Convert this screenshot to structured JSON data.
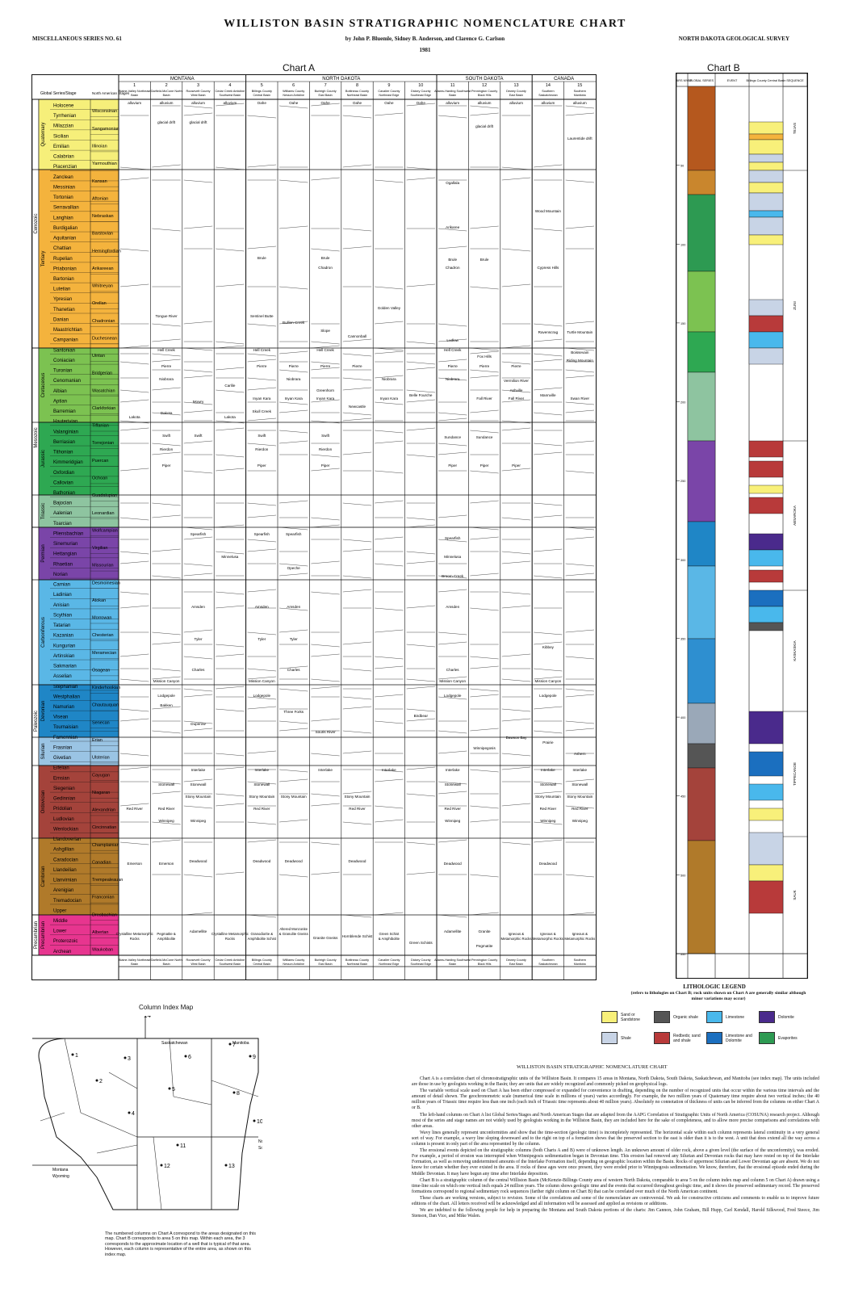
{
  "header": {
    "title": "WILLISTON BASIN STRATIGRAPHIC NOMENCLATURE CHART",
    "series": "MISCELLANEOUS SERIES NO. 61",
    "authors": "by John P. Bluemle, Sidney B. Anderson, and Clarence G. Carlson",
    "survey": "NORTH DAKOTA GEOLOGICAL SURVEY",
    "year": "1981"
  },
  "chartA": {
    "title": "Chart A",
    "col_header_series": "Global Series/Stage",
    "col_header_na": "North American Stages",
    "regions": [
      {
        "name": "MONTANA",
        "cols": [
          "1",
          "2",
          "3",
          "4"
        ]
      },
      {
        "name": "NORTH DAKOTA",
        "cols": [
          "5",
          "6",
          "7",
          "8",
          "9",
          "10"
        ]
      },
      {
        "name": "SOUTH DAKOTA",
        "cols": [
          "11",
          "12",
          "13"
        ]
      },
      {
        "name": "CANADA",
        "cols": [
          "14",
          "15"
        ]
      }
    ],
    "areas": [
      "Blaine-Valley Northeast Basin",
      "Garfield-McCone North Basin",
      "Roosevelt County West Basin",
      "Cedar Creek Anticline Southwest Basin",
      "Billings County Central Basin",
      "Williams County Nesson Anticline",
      "Burleigh County East Basin",
      "Bottineau County Northeast Basin",
      "Cavalier County Northeast Edge",
      "Dickey County Southeast Edge",
      "Adams-Harding Southwest Basin",
      "Pennington County Black Hills",
      "Dewey County East Basin",
      "Southern Saskatchewan",
      "Southern Manitoba"
    ],
    "eras": [
      "Cenozoic",
      "Mesozoic",
      "Paleozoic",
      "Precambrian"
    ],
    "systems": [
      {
        "name": "Quaternary",
        "color": "#f6ef7a"
      },
      {
        "name": "Tertiary",
        "color": "#f4b33d"
      },
      {
        "name": "Cretaceous",
        "color": "#7cc251"
      },
      {
        "name": "Jurassic",
        "color": "#2ea852"
      },
      {
        "name": "Triassic",
        "color": "#8ec4a0"
      },
      {
        "name": "Permian",
        "color": "#7a45a8"
      },
      {
        "name": "Carboniferous",
        "color": "#5ab7e6"
      },
      {
        "name": "Devonian",
        "color": "#1f86c6"
      },
      {
        "name": "Silurian",
        "color": "#9ac4e4"
      },
      {
        "name": "Ordovician",
        "color": "#a4433b"
      },
      {
        "name": "Cambrian",
        "color": "#b07a2a"
      },
      {
        "name": "Precambrian",
        "color": "#e7358f"
      }
    ],
    "stages": [
      "Holocene",
      "Tyrrhenian",
      "Milazzian",
      "Sicilian",
      "Emilian",
      "Calabrian",
      "Piacenzian",
      "Zanclean",
      "Messinian",
      "Tortonian",
      "Serravallian",
      "Langhian",
      "Burdigalian",
      "Aquitanian",
      "Chattian",
      "Rupelian",
      "Priabonian",
      "Bartonian",
      "Lutetian",
      "Ypresian",
      "Thanetian",
      "Danian",
      "Maastrichtian",
      "Campanian",
      "Santonian",
      "Coniacian",
      "Turonian",
      "Cenomanian",
      "Albian",
      "Aptian",
      "Barremian",
      "Hauterivian",
      "Valanginian",
      "Berriasian",
      "Tithonian",
      "Kimmeridgian",
      "Oxfordian",
      "Callovian",
      "Bathonian",
      "Bajocian",
      "Aalenian",
      "Toarcian",
      "Pliensbachian",
      "Sinemurian",
      "Hettangian",
      "Rhaetian",
      "Norian",
      "Carnian",
      "Ladinian",
      "Anisian",
      "Scythian",
      "Tatarian",
      "Kazanian",
      "Kungurian",
      "Artinskian",
      "Sakmarian",
      "Asselian",
      "Stephanian",
      "Westphalian",
      "Namurian",
      "Visean",
      "Tournaisian",
      "Famennian",
      "Frasnian",
      "Givetian",
      "Eifelian",
      "Emsian",
      "Siegenian",
      "Gedinnian",
      "Pridolian",
      "Ludlovian",
      "Wenlockian",
      "Llandoverian",
      "Ashgillian",
      "Caradocian",
      "Llandeilian",
      "Llanvirnian",
      "Arenigian",
      "Tremadocian",
      "Upper",
      "Middle",
      "Lower",
      "Proterozoic",
      "Archean"
    ],
    "na_stages": [
      "Wisconsinan",
      "Sangamonian",
      "Illinoian",
      "Yarmouthian",
      "Kansan",
      "Aftonian",
      "Nebraskan",
      "Barstovian",
      "Hemingfordian",
      "Arikareean",
      "Whitneyan",
      "Orellan",
      "Chadronian",
      "Duchesnean",
      "Uintan",
      "Bridgerian",
      "Wasatchian",
      "Clarkforkian",
      "Tiffanian",
      "Torrejonian",
      "Puercan",
      "Ochoan",
      "Guadalupian",
      "Leonardian",
      "Wolfcampian",
      "Virgilian",
      "Missourian",
      "Desmoinesian",
      "Atokan",
      "Morrowan",
      "Chesterian",
      "Meramecian",
      "Osagean",
      "Kinderhookian",
      "Chautauquan",
      "Senecan",
      "Erian",
      "Ulsterian",
      "Cayugan",
      "Niagaran",
      "Alexandrian",
      "Cincinnatian",
      "Champlainian",
      "Canadian",
      "Trempealeauan",
      "Franconian",
      "Dresbachian",
      "Albertan",
      "Waukoban"
    ],
    "formations": [
      "alluvium",
      "Oahe",
      "glacial drift",
      "Laurentide drift",
      "Hell Creek",
      "Fox Hills",
      "Pierre",
      "Niobrara",
      "Carlile",
      "Greenhorn",
      "Belle Fourche",
      "Mowry",
      "Newcastle",
      "Skull Creek",
      "Inyan Kara",
      "Fall River",
      "Lakota",
      "Dakota",
      "Swift",
      "Rierdon",
      "Piper",
      "Sundance",
      "Spearfish",
      "Minnelusa",
      "Opeche",
      "Broom Creek",
      "Amsden",
      "Tyler",
      "Kibbey",
      "Charles",
      "Mission Canyon",
      "Lodgepole",
      "Bakken",
      "Three Forks",
      "Birdbear",
      "Duperow",
      "Souris River",
      "Dawson Bay",
      "Prairie",
      "Winnipegosis",
      "Ashern",
      "Interlake",
      "Stonewall",
      "Stony Mountain",
      "Red River",
      "Winnipeg",
      "Deadwood",
      "Emerson",
      "Tongue River",
      "Sentinel Butte",
      "Ludlow",
      "Cannonball",
      "Slope",
      "Bullion Creek",
      "Golden Valley",
      "Brule",
      "Chadron",
      "Arikaree",
      "Ogallala",
      "Wood Mountain",
      "Cypress Hills",
      "Ravenscrag",
      "Turtle Mountain",
      "Boissevain",
      "Riding Mountain",
      "Swan River",
      "Vermilion River",
      "Ashville",
      "Mannville",
      "Crystalline Metamorphic Rocks",
      "Pegmatite & Amphibolite",
      "Adamellite",
      "Granodiorite & Amphibolite Schist",
      "Altered Monzonite & Granulite Gneiss",
      "Granite Gneiss",
      "Hornblende Schist",
      "Green Schist & Amphibolite",
      "Green Schists",
      "Granite",
      "Pegmatite",
      "Igneous & Metamorphic Rocks"
    ]
  },
  "chartB": {
    "title": "Chart B",
    "headers": [
      "YEARS MYBP",
      "GLOBAL SERIES",
      "EVENT",
      "Billings County Central Basin",
      "SEQUENCE"
    ],
    "sequences": [
      "TEJAS",
      "ZUNI",
      "ABSAROKA",
      "KASKASKIA",
      "TIPPECANOE",
      "SAUK"
    ],
    "scale": [
      "50",
      "100",
      "150",
      "200",
      "250",
      "300",
      "350",
      "400",
      "450",
      "500",
      "550"
    ]
  },
  "legend": {
    "title": "LITHOLOGIC LEGEND",
    "subtitle": "(refers to lithologies on Chart B; rock units shown on Chart A are generally similar although minor variations may occur)",
    "items": [
      {
        "label": "Sand or Sandstone",
        "color": "#f8f07a"
      },
      {
        "label": "Organic shale",
        "color": "#555555"
      },
      {
        "label": "Limestone",
        "color": "#49b8ec"
      },
      {
        "label": "Dolomite",
        "color": "#4a2a8c"
      },
      {
        "label": "Shale",
        "color": "#c8d4e6"
      },
      {
        "label": "Redbeds; sand and shale",
        "color": "#b83a3a"
      },
      {
        "label": "Limestone and Dolomite",
        "color": "#1b6fbf"
      },
      {
        "label": "Evaporites",
        "color": "#2d9a52"
      }
    ]
  },
  "map": {
    "title": "Column Index Map",
    "labels": [
      "14",
      "15",
      "Saskatchewan",
      "Manitoba",
      "Montana",
      "Wyoming",
      "North Dakota",
      "South Dakota"
    ],
    "points": [
      "1",
      "2",
      "3",
      "4",
      "5",
      "6",
      "7",
      "8",
      "9",
      "10",
      "11",
      "12",
      "13"
    ],
    "caption": "The numbered columns on Chart A correspond to the areas designated on this map. Chart B corresponds to area 5 on this map. Within each area, the 3 corresponds to the approximate location of a well that is typical of that area. However, each column is representative of the entire area, as shown on this index map."
  },
  "text": {
    "title": "WILLISTON BASIN STRATIGRAPHIC NOMENCLATURE CHART",
    "paragraphs": [
      "Chart A is a correlation chart of chronostratigraphic units of the Williston Basin. It compares 15 areas in Montana, North Dakota, South Dakota, Saskatchewan, and Manitoba (see index map). The units included are those in use by geologists working in the Basin; they are units that are widely recognized and commonly picked on geophysical logs.",
      "The variable vertical scale used on Chart A has been either compressed or expanded for convenience in drafting, depending on the number of recognized units that occur within the various time intervals and the amount of detail shown. The geochronometric scale (numerical time scale in millions of years) varies accordingly. For example, the two million years of Quaternary time require about two vertical inches; the 40 million years of Triassic time require less than one inch (each inch of Triassic time represents about 40 million years). Absolutely no connotation of thickness of units can be inferred from the columns on either Chart A or B.",
      "The left-hand columns on Chart A list Global Series/Stages and North American Stages that are adapted from the AAPG Correlation of Stratigraphic Units of North America (COSUNA) research project. Although most of the series and stage names are not widely used by geologists working in the Williston Basin, they are included here for the sake of completeness, and to allow more precise comparisons and correlations with other areas.",
      "Wavy lines generally represent unconformities and show that the time-section (geologic time) is incompletely represented. The horizontal scale within each column represents lateral continuity in a very general sort of way. For example, a wavy line sloping downward and to the right on top of a formation shows that the preserved section to the east is older than it is to the west. A unit that does extend all the way across a column is present in only part of the area represented by the column.",
      "The erosional events depicted on the stratigraphic columns (both Charts A and B) were of unknown length. An unknown amount of older rock, above a given level (the surface of the unconformity), was eroded. For example, a period of erosion was interrupted when Winnipegosis sedimentation began in Devonian time. This erosion had removed any Silurian and Devonian rocks that may have rested on top of the Interlake Formation, as well as removing undetermined amounts of the Interlake Formation itself, depending on geographic location within the Basin. Rocks of uppermost Silurian and Lower Devonian age are absent. We do not know for certain whether they ever existed in the area. If rocks of these ages were once present, they were eroded prior to Winnipegosis sedimentation. We know, therefore, that the erosional episode ended during the Middle Devonian. It may have begun any time after Interlake deposition.",
      "Chart B is a stratigraphic column of the central Williston Basin (McKenzie-Billings County area of western North Dakota, comparable to area 5 on the column index map and column 5 on Chart A) drawn using a time-line scale on which one vertical inch equals 24 million years. The column shows geologic time and the events that occurred throughout geologic time, and it shows the preserved sedimentary record. The preserved formations correspond to regional sedimentary rock sequences (farther right column on Chart B) that can be correlated over much of the North American continent.",
      "These charts are working versions, subject to revision. Some of the correlations and some of the nomenclature are controversial. We ask for constructive criticisms and comments to enable us to improve future editions of the chart. All letters received will be acknowledged and all information will be assessed and applied as revisions or additions.",
      "We are indebted to the following people for help in preparing the Montana and South Dakota portions of the charts: Jim Cannon, John Graham, Bill Hupp, Carl Kendall, Harold Silkwood, Fred Steece, Jim Stenson, Dan Vice, and Mike Walen."
    ]
  }
}
